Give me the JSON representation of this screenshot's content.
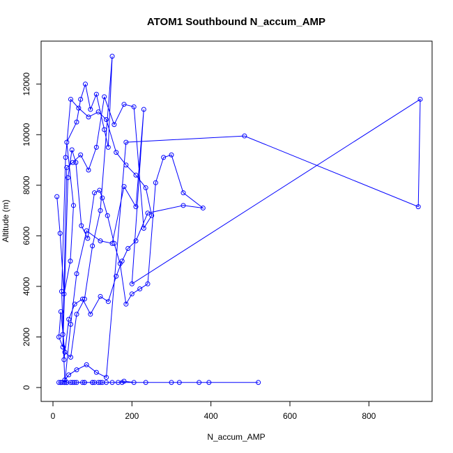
{
  "chart_data": {
    "type": "line",
    "title": "ATOM1 Southbound N_accum_AMP",
    "xlabel": "N_accum_AMP",
    "ylabel": "Altitude (m)",
    "xlim": [
      -30,
      960
    ],
    "ylim": [
      -550,
      13700
    ],
    "xticks": [
      0,
      200,
      400,
      600,
      800
    ],
    "yticks": [
      0,
      2000,
      4000,
      6000,
      8000,
      10000,
      12000
    ],
    "grid": false,
    "legend": "none",
    "series_color": "#0000ff",
    "marker": "open-circle",
    "series": [
      {
        "x": [
          10,
          18,
          28,
          44,
          52,
          35,
          60,
          70,
          82,
          95,
          110,
          130,
          140,
          150,
          120,
          100,
          80,
          60,
          45,
          30,
          20,
          15,
          25,
          38,
          48,
          58,
          72,
          88,
          105,
          118,
          125,
          138,
          155,
          170,
          185,
          200,
          220,
          240,
          260,
          280,
          300,
          330,
          380,
          330,
          240,
          210,
          190,
          175,
          160,
          140,
          120,
          95,
          75,
          55,
          40,
          28,
          22,
          32,
          45,
          65,
          90,
          115,
          135,
          160,
          185,
          210,
          235,
          250,
          230,
          205,
          180,
          155,
          130,
          110,
          90,
          70,
          50,
          35,
          25,
          30,
          40,
          60,
          85,
          110,
          135,
          185,
          485,
          925,
          930,
          200,
          230,
          210,
          180,
          150,
          120,
          85,
          60,
          45,
          30,
          20,
          35,
          55,
          80,
          105,
          125,
          395,
          370,
          320,
          235,
          175,
          120,
          100,
          75,
          50,
          30,
          20,
          15,
          25,
          35,
          45,
          60,
          80,
          100,
          115,
          135,
          150,
          165,
          180,
          205,
          300,
          520
        ],
        "y": [
          7550,
          6100,
          3700,
          5000,
          7200,
          9700,
          10500,
          11400,
          12000,
          11000,
          11600,
          10200,
          9500,
          13100,
          7000,
          5600,
          3500,
          2900,
          1200,
          1400,
          3000,
          2000,
          1600,
          8300,
          9400,
          8900,
          6400,
          5900,
          7700,
          7800,
          7500,
          6800,
          5700,
          4900,
          3300,
          3700,
          3900,
          4100,
          8100,
          9100,
          9200,
          7700,
          7100,
          7200,
          6900,
          5800,
          5500,
          5000,
          4400,
          3400,
          3600,
          2900,
          3500,
          3300,
          2700,
          1100,
          3800,
          9100,
          11400,
          11050,
          10700,
          10900,
          10600,
          9300,
          8800,
          8400,
          7900,
          6800,
          6300,
          11100,
          11200,
          10400,
          11500,
          9500,
          8600,
          9200,
          8900,
          8700,
          2100,
          300,
          500,
          700,
          900,
          600,
          400,
          9700,
          9950,
          7150,
          11400,
          4100,
          11000,
          7150,
          7950,
          5700,
          5800,
          6200,
          4500,
          2500,
          200,
          200,
          200,
          200,
          200,
          200,
          200,
          200,
          200,
          200,
          200,
          200,
          200,
          200,
          200,
          200,
          200,
          200,
          200,
          200,
          200,
          200,
          200,
          200,
          200,
          200,
          200,
          200,
          200,
          250,
          200,
          200,
          200
        ]
      }
    ]
  }
}
